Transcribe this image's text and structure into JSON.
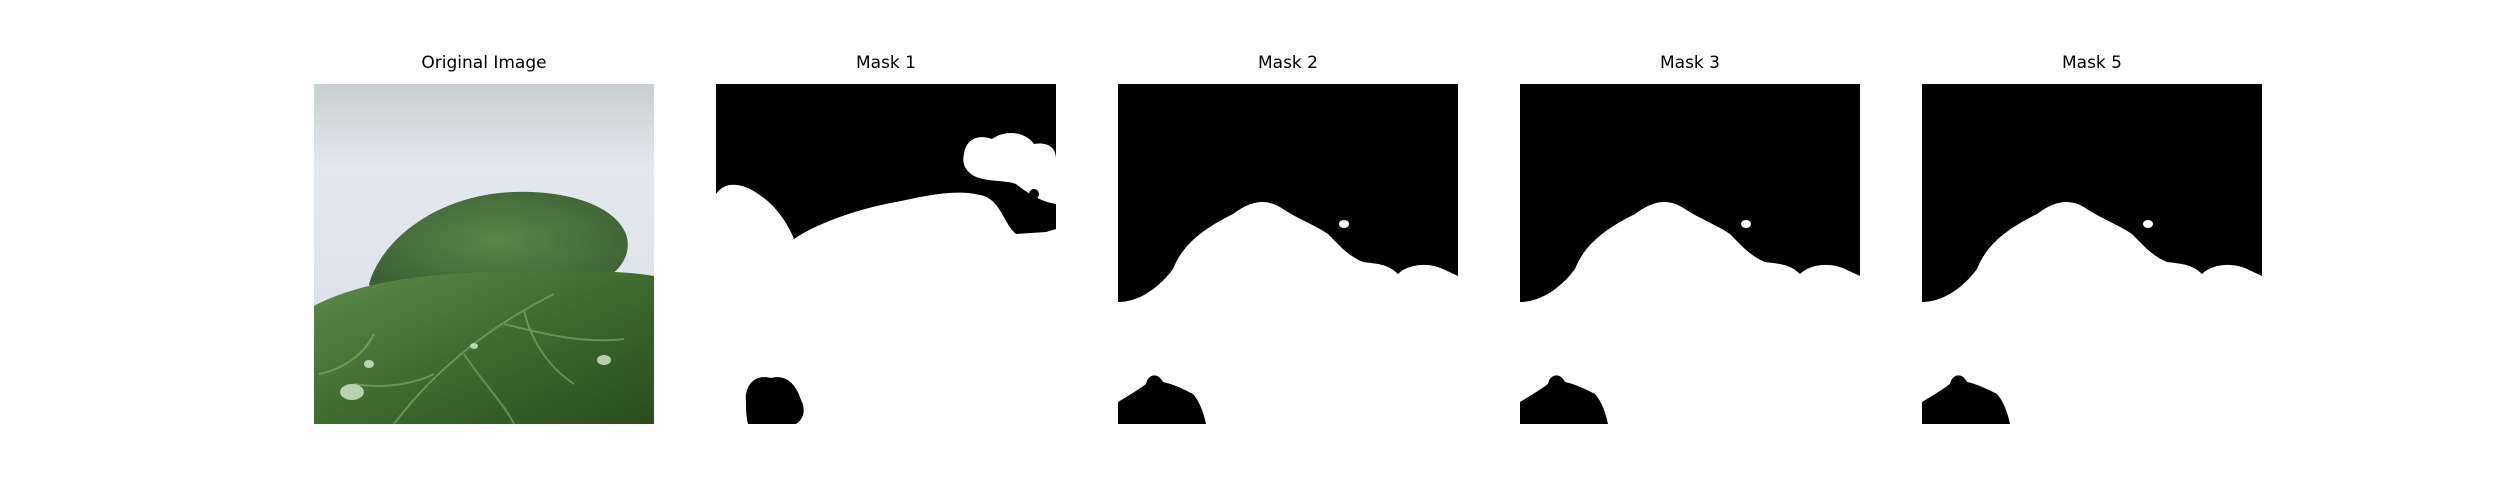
{
  "figure": {
    "panels": [
      {
        "title": "Original Image"
      },
      {
        "title": "Mask 1"
      },
      {
        "title": "Mask 2"
      },
      {
        "title": "Mask 3"
      },
      {
        "title": "Mask 5"
      }
    ]
  },
  "colors": {
    "background": "#ffffff",
    "mask_foreground": "#ffffff",
    "mask_background": "#000000",
    "leaf_dark": "#2f5a22",
    "leaf_mid": "#4b7a3a",
    "leaf_light": "#7ea66a",
    "backdrop": "#dfe6ea"
  },
  "icons": {
    "original": "leaf-photo",
    "mask": "binary-segmentation-mask"
  }
}
